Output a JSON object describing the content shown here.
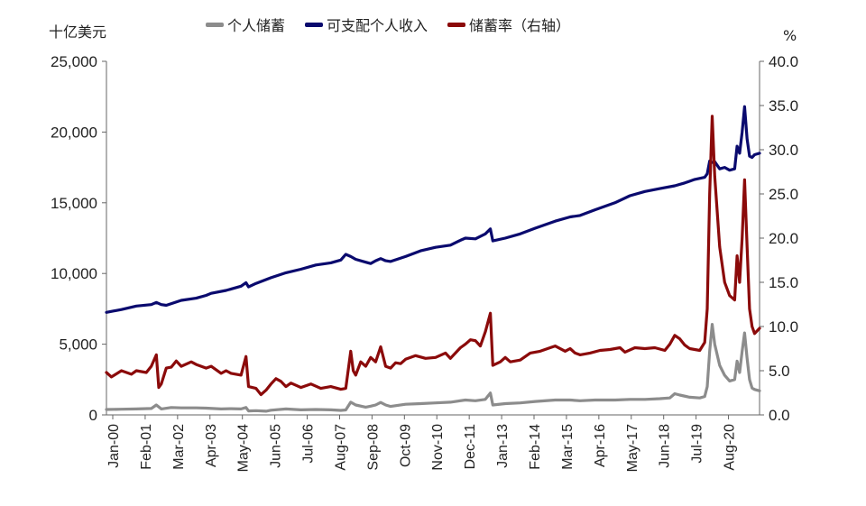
{
  "chart_data": {
    "type": "line",
    "left_axis_unit": "十亿美元",
    "right_axis_unit": "%",
    "x_tick_labels": [
      "Jan-00",
      "Feb-01",
      "Mar-02",
      "Apr-03",
      "May-04",
      "Jun-05",
      "Jul-06",
      "Aug-07",
      "Sep-08",
      "Oct-09",
      "Nov-10",
      "Dec-11",
      "Jan-13",
      "Feb-14",
      "Mar-15",
      "Apr-16",
      "May-17",
      "Jun-18",
      "Jul-19",
      "Aug-20"
    ],
    "y_left": {
      "min": 0,
      "max": 25000,
      "ticks": [
        "0",
        "5,000",
        "10,000",
        "15,000",
        "20,000",
        "25,000"
      ]
    },
    "y_right": {
      "min": 0,
      "max": 40,
      "ticks": [
        "0.0",
        "5.0",
        "10.0",
        "15.0",
        "20.0",
        "25.0",
        "30.0",
        "35.0",
        "40.0"
      ]
    },
    "grid": false,
    "legend_position": "top-center",
    "series": [
      {
        "name": "个人储蓄",
        "axis": "left",
        "color": "#8c8c8c",
        "points": [
          [
            0,
            380
          ],
          [
            6,
            400
          ],
          [
            12,
            420
          ],
          [
            18,
            450
          ],
          [
            20,
            700
          ],
          [
            22,
            420
          ],
          [
            26,
            520
          ],
          [
            30,
            500
          ],
          [
            36,
            500
          ],
          [
            40,
            480
          ],
          [
            46,
            420
          ],
          [
            50,
            440
          ],
          [
            54,
            420
          ],
          [
            56,
            520
          ],
          [
            57,
            280
          ],
          [
            60,
            300
          ],
          [
            64,
            260
          ],
          [
            66,
            330
          ],
          [
            72,
            420
          ],
          [
            78,
            360
          ],
          [
            84,
            380
          ],
          [
            90,
            360
          ],
          [
            94,
            320
          ],
          [
            96,
            350
          ],
          [
            98,
            900
          ],
          [
            100,
            700
          ],
          [
            104,
            550
          ],
          [
            106,
            620
          ],
          [
            108,
            700
          ],
          [
            110,
            880
          ],
          [
            112,
            700
          ],
          [
            114,
            600
          ],
          [
            120,
            750
          ],
          [
            126,
            800
          ],
          [
            132,
            850
          ],
          [
            138,
            900
          ],
          [
            144,
            1050
          ],
          [
            148,
            1000
          ],
          [
            152,
            1100
          ],
          [
            154,
            1550
          ],
          [
            155,
            700
          ],
          [
            160,
            800
          ],
          [
            166,
            850
          ],
          [
            172,
            950
          ],
          [
            180,
            1050
          ],
          [
            186,
            1050
          ],
          [
            190,
            1000
          ],
          [
            196,
            1050
          ],
          [
            204,
            1050
          ],
          [
            210,
            1100
          ],
          [
            216,
            1100
          ],
          [
            222,
            1150
          ],
          [
            226,
            1200
          ],
          [
            228,
            1500
          ],
          [
            230,
            1400
          ],
          [
            234,
            1250
          ],
          [
            238,
            1200
          ],
          [
            240,
            1300
          ],
          [
            241,
            2000
          ],
          [
            242,
            4500
          ],
          [
            243,
            6400
          ],
          [
            244,
            5000
          ],
          [
            246,
            3500
          ],
          [
            248,
            2800
          ],
          [
            250,
            2400
          ],
          [
            252,
            2500
          ],
          [
            253,
            3800
          ],
          [
            254,
            3000
          ],
          [
            255,
            4500
          ],
          [
            256,
            5800
          ],
          [
            257,
            4000
          ],
          [
            258,
            2500
          ],
          [
            259,
            1900
          ],
          [
            260,
            1800
          ],
          [
            262,
            1700
          ]
        ]
      },
      {
        "name": "可支配个人收入",
        "axis": "left",
        "color": "#0a0a6e",
        "points": [
          [
            0,
            7250
          ],
          [
            6,
            7450
          ],
          [
            12,
            7700
          ],
          [
            18,
            7800
          ],
          [
            20,
            7950
          ],
          [
            22,
            7800
          ],
          [
            24,
            7750
          ],
          [
            30,
            8100
          ],
          [
            36,
            8250
          ],
          [
            40,
            8450
          ],
          [
            42,
            8600
          ],
          [
            48,
            8800
          ],
          [
            54,
            9100
          ],
          [
            56,
            9350
          ],
          [
            57,
            9050
          ],
          [
            60,
            9300
          ],
          [
            66,
            9700
          ],
          [
            72,
            10050
          ],
          [
            78,
            10300
          ],
          [
            84,
            10600
          ],
          [
            90,
            10750
          ],
          [
            94,
            10950
          ],
          [
            96,
            11350
          ],
          [
            98,
            11200
          ],
          [
            100,
            11000
          ],
          [
            104,
            10800
          ],
          [
            106,
            10700
          ],
          [
            108,
            10900
          ],
          [
            110,
            11050
          ],
          [
            112,
            10900
          ],
          [
            114,
            10850
          ],
          [
            120,
            11200
          ],
          [
            126,
            11600
          ],
          [
            132,
            11850
          ],
          [
            138,
            12000
          ],
          [
            142,
            12350
          ],
          [
            144,
            12500
          ],
          [
            148,
            12450
          ],
          [
            152,
            12800
          ],
          [
            154,
            13150
          ],
          [
            155,
            12300
          ],
          [
            160,
            12500
          ],
          [
            166,
            12800
          ],
          [
            172,
            13200
          ],
          [
            180,
            13700
          ],
          [
            186,
            14000
          ],
          [
            190,
            14100
          ],
          [
            196,
            14500
          ],
          [
            204,
            15000
          ],
          [
            210,
            15500
          ],
          [
            216,
            15800
          ],
          [
            222,
            16000
          ],
          [
            228,
            16200
          ],
          [
            232,
            16400
          ],
          [
            236,
            16650
          ],
          [
            240,
            16800
          ],
          [
            241,
            17050
          ],
          [
            242,
            17950
          ],
          [
            243,
            17850
          ],
          [
            244,
            17900
          ],
          [
            246,
            17400
          ],
          [
            248,
            17500
          ],
          [
            250,
            17300
          ],
          [
            252,
            17400
          ],
          [
            253,
            19000
          ],
          [
            254,
            18500
          ],
          [
            255,
            20000
          ],
          [
            256,
            21800
          ],
          [
            257,
            19500
          ],
          [
            258,
            18300
          ],
          [
            259,
            18200
          ],
          [
            260,
            18400
          ],
          [
            262,
            18500
          ]
        ]
      },
      {
        "name": "储蓄率（右轴）",
        "axis": "right",
        "color": "#8b0a0a",
        "points": [
          [
            0,
            4.8
          ],
          [
            2,
            4.3
          ],
          [
            6,
            5.0
          ],
          [
            10,
            4.6
          ],
          [
            12,
            5.0
          ],
          [
            16,
            4.8
          ],
          [
            18,
            5.5
          ],
          [
            20,
            6.8
          ],
          [
            21,
            3.1
          ],
          [
            22,
            3.5
          ],
          [
            24,
            5.3
          ],
          [
            26,
            5.4
          ],
          [
            28,
            6.1
          ],
          [
            30,
            5.5
          ],
          [
            34,
            6.0
          ],
          [
            36,
            5.7
          ],
          [
            40,
            5.3
          ],
          [
            42,
            5.5
          ],
          [
            46,
            4.7
          ],
          [
            48,
            5.0
          ],
          [
            50,
            4.7
          ],
          [
            54,
            4.5
          ],
          [
            56,
            6.6
          ],
          [
            57,
            3.2
          ],
          [
            60,
            3.0
          ],
          [
            62,
            2.3
          ],
          [
            64,
            2.8
          ],
          [
            66,
            3.5
          ],
          [
            68,
            4.1
          ],
          [
            70,
            3.8
          ],
          [
            72,
            3.2
          ],
          [
            74,
            3.6
          ],
          [
            78,
            3.1
          ],
          [
            82,
            3.5
          ],
          [
            86,
            3.0
          ],
          [
            90,
            3.2
          ],
          [
            94,
            2.9
          ],
          [
            96,
            3.0
          ],
          [
            98,
            7.2
          ],
          [
            99,
            5.0
          ],
          [
            100,
            4.5
          ],
          [
            102,
            6.0
          ],
          [
            104,
            5.5
          ],
          [
            106,
            6.5
          ],
          [
            108,
            6.0
          ],
          [
            110,
            7.7
          ],
          [
            112,
            5.5
          ],
          [
            114,
            5.3
          ],
          [
            116,
            5.9
          ],
          [
            118,
            5.8
          ],
          [
            120,
            6.3
          ],
          [
            124,
            6.7
          ],
          [
            128,
            6.4
          ],
          [
            132,
            6.5
          ],
          [
            136,
            7.0
          ],
          [
            138,
            6.4
          ],
          [
            142,
            7.6
          ],
          [
            144,
            8.0
          ],
          [
            146,
            8.5
          ],
          [
            148,
            8.4
          ],
          [
            150,
            7.8
          ],
          [
            152,
            9.4
          ],
          [
            154,
            11.5
          ],
          [
            155,
            5.6
          ],
          [
            158,
            6.0
          ],
          [
            160,
            6.5
          ],
          [
            162,
            6.0
          ],
          [
            166,
            6.2
          ],
          [
            170,
            7.0
          ],
          [
            174,
            7.2
          ],
          [
            178,
            7.6
          ],
          [
            180,
            7.8
          ],
          [
            184,
            7.2
          ],
          [
            186,
            7.5
          ],
          [
            188,
            7.0
          ],
          [
            190,
            6.8
          ],
          [
            194,
            7.0
          ],
          [
            198,
            7.3
          ],
          [
            202,
            7.4
          ],
          [
            206,
            7.6
          ],
          [
            208,
            7.1
          ],
          [
            212,
            7.6
          ],
          [
            216,
            7.5
          ],
          [
            220,
            7.6
          ],
          [
            224,
            7.3
          ],
          [
            226,
            8.0
          ],
          [
            228,
            9.0
          ],
          [
            230,
            8.6
          ],
          [
            232,
            7.9
          ],
          [
            234,
            7.5
          ],
          [
            238,
            7.3
          ],
          [
            240,
            8.2
          ],
          [
            241,
            12.0
          ],
          [
            242,
            25.0
          ],
          [
            243,
            33.8
          ],
          [
            244,
            27.0
          ],
          [
            246,
            19.0
          ],
          [
            248,
            15.0
          ],
          [
            250,
            13.5
          ],
          [
            252,
            13.0
          ],
          [
            253,
            18.0
          ],
          [
            254,
            15.0
          ],
          [
            255,
            20.0
          ],
          [
            256,
            26.6
          ],
          [
            257,
            19.0
          ],
          [
            258,
            12.0
          ],
          [
            259,
            10.0
          ],
          [
            260,
            9.2
          ],
          [
            262,
            9.8
          ]
        ]
      }
    ]
  }
}
